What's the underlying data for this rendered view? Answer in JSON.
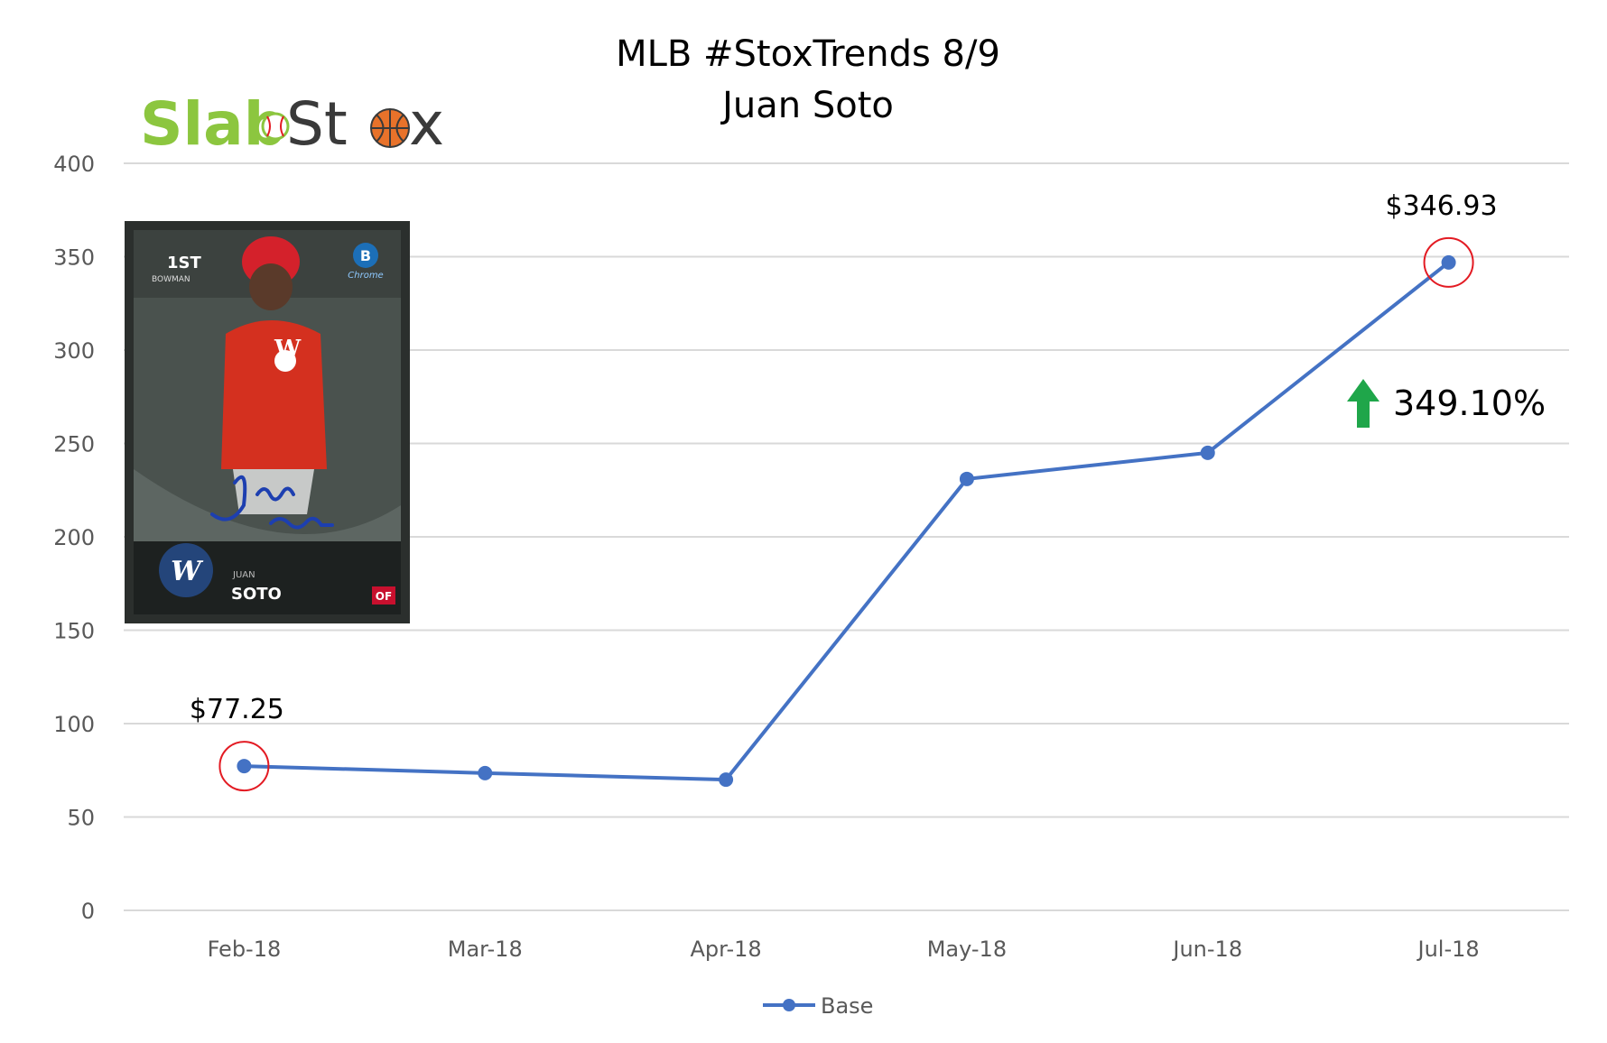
{
  "logo": {
    "part1": "Slab",
    "part2": "St",
    "part3": "x"
  },
  "card": {
    "rookie_mark": "1ST",
    "brand": "BOWMAN",
    "chrome_mark": "Chrome",
    "first_name": "JUAN",
    "last_name": "SOTO",
    "position": "OF"
  },
  "colors": {
    "line": "#4472c4",
    "highlight": "#e31b23",
    "up_arrow": "#1fa64a",
    "grid": "#d9d9d9",
    "logo_green": "#8cc63f"
  },
  "chart_data": {
    "type": "line",
    "title": [
      "MLB #StoxTrends 8/9",
      "Juan Soto"
    ],
    "categories": [
      "Feb-18",
      "Mar-18",
      "Apr-18",
      "May-18",
      "Jun-18",
      "Jul-18"
    ],
    "series": [
      {
        "name": "Base",
        "values": [
          77.25,
          73.5,
          70.0,
          231.0,
          245.0,
          346.93
        ]
      }
    ],
    "ylim": [
      0,
      400
    ],
    "yticks": [
      0,
      50,
      100,
      150,
      200,
      250,
      300,
      350,
      400
    ],
    "grid": true,
    "legend": "bottom",
    "annotations": [
      {
        "category": "Feb-18",
        "label": "$77.25"
      },
      {
        "category": "Jul-18",
        "label": "$346.93"
      }
    ],
    "change_label": "349.10%"
  }
}
